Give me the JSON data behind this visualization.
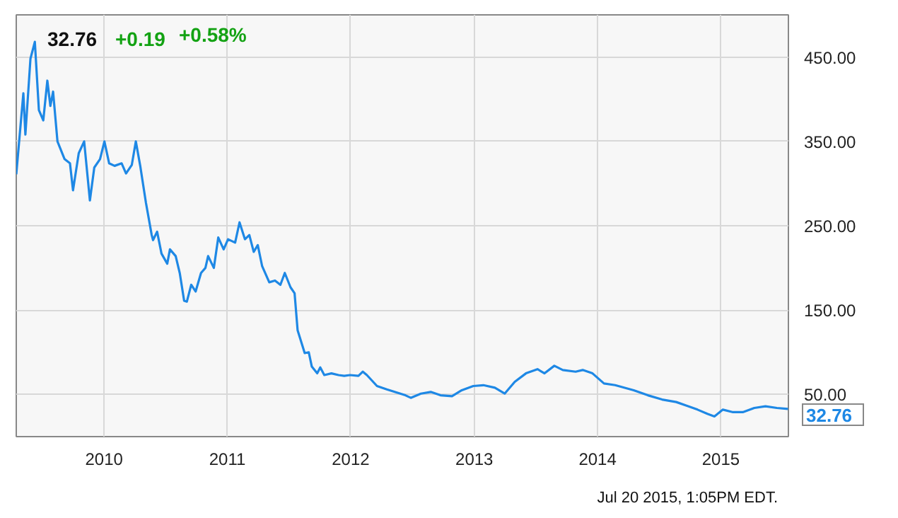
{
  "chart_data": {
    "type": "line",
    "title": "32.76",
    "annotations": [
      "+0.19",
      "+0.58%",
      "Jul 20 2015, 1:05PM EDT.",
      {
        "text": "32.76",
        "x": "2015-07-19",
        "y": 32.76
      }
    ],
    "x": [
      "2009-04-16",
      "2009-05-07",
      "2009-05-13",
      "2009-05-28",
      "2009-06-10",
      "2009-06-22",
      "2009-07-05",
      "2009-07-17",
      "2009-07-26",
      "2009-08-03",
      "2009-08-16",
      "2009-09-06",
      "2009-09-22",
      "2009-10-01",
      "2009-10-18",
      "2009-11-03",
      "2009-11-20",
      "2009-12-03",
      "2009-12-20",
      "2010-01-02",
      "2010-01-16",
      "2010-02-01",
      "2010-02-22",
      "2010-03-07",
      "2010-03-24",
      "2010-04-05",
      "2010-04-18",
      "2010-05-05",
      "2010-05-22",
      "2010-05-26",
      "2010-06-07",
      "2010-06-20",
      "2010-07-07",
      "2010-07-15",
      "2010-08-01",
      "2010-08-13",
      "2010-08-26",
      "2010-09-03",
      "2010-09-16",
      "2010-09-29",
      "2010-10-15",
      "2010-10-28",
      "2010-11-05",
      "2010-11-22",
      "2010-12-05",
      "2010-12-21",
      "2011-01-03",
      "2011-01-24",
      "2011-02-06",
      "2011-02-22",
      "2011-03-07",
      "2011-03-20",
      "2011-04-01",
      "2011-04-14",
      "2011-05-05",
      "2011-05-22",
      "2011-06-07",
      "2011-06-20",
      "2011-07-07",
      "2011-07-19",
      "2011-07-28",
      "2011-08-18",
      "2011-08-30",
      "2011-09-08",
      "2011-09-24",
      "2011-10-03",
      "2011-10-15",
      "2011-11-05",
      "2011-11-26",
      "2011-12-13",
      "2011-12-30",
      "2012-01-24",
      "2012-02-06",
      "2012-02-18",
      "2012-03-19",
      "2012-04-17",
      "2012-06-11",
      "2012-06-27",
      "2012-07-27",
      "2012-08-25",
      "2012-09-23",
      "2012-10-27",
      "2012-11-25",
      "2012-12-29",
      "2013-01-28",
      "2013-03-03",
      "2013-04-01",
      "2013-05-01",
      "2013-06-03",
      "2013-07-07",
      "2013-07-28",
      "2013-08-26",
      "2013-09-20",
      "2013-10-28",
      "2013-11-18",
      "2013-12-17",
      "2014-01-20",
      "2014-02-22",
      "2014-04-18",
      "2014-05-30",
      "2014-07-11",
      "2014-08-22",
      "2014-09-20",
      "2014-10-24",
      "2014-11-22",
      "2014-12-13",
      "2015-01-07",
      "2015-02-06",
      "2015-03-07",
      "2015-04-10",
      "2015-05-13",
      "2015-06-16",
      "2015-07-19"
    ],
    "series": [
      {
        "color": "#1e88e5",
        "values": [
          311,
          407,
          358,
          448,
          468,
          387,
          375,
          422,
          392,
          409,
          350,
          329,
          324,
          292,
          336,
          350,
          280,
          319,
          329,
          350,
          324,
          321,
          324,
          312,
          322,
          350,
          321,
          277,
          239,
          233,
          243,
          217,
          205,
          222,
          214,
          194,
          161,
          160,
          180,
          172,
          194,
          200,
          214,
          200,
          236,
          222,
          234,
          230,
          254,
          234,
          239,
          219,
          227,
          202,
          183,
          185,
          180,
          194,
          177,
          170,
          126,
          99,
          100,
          83,
          75,
          82,
          73,
          75,
          73,
          72,
          73,
          72,
          77,
          73,
          60,
          56,
          49,
          46,
          51,
          53,
          49,
          48,
          55,
          60,
          61,
          58,
          51,
          65,
          75,
          80,
          75,
          84,
          79,
          77,
          79,
          75,
          63,
          61,
          55,
          49,
          44,
          41,
          37,
          32,
          27,
          24,
          32,
          29,
          29,
          34,
          36,
          34,
          32.76
        ]
      }
    ],
    "xlim": [
      "2009-04-16",
      "2015-07-20"
    ],
    "xticks": [
      {
        "value": "2010-01-01",
        "label": "2010"
      },
      {
        "value": "2011-01-01",
        "label": "2011"
      },
      {
        "value": "2012-01-01",
        "label": "2012"
      },
      {
        "value": "2013-01-01",
        "label": "2013"
      },
      {
        "value": "2014-01-01",
        "label": "2014"
      },
      {
        "value": "2015-01-01",
        "label": "2015"
      }
    ],
    "ylim": [
      0,
      500
    ],
    "yticks": [
      {
        "value": 50,
        "label": "50.00"
      },
      {
        "value": 150,
        "label": "150.00"
      },
      {
        "value": 250,
        "label": "250.00"
      },
      {
        "value": 350,
        "label": "350.00"
      },
      {
        "value": 450,
        "label": "450.00"
      }
    ],
    "grid": true,
    "marker": "none",
    "line_style": "solid"
  }
}
